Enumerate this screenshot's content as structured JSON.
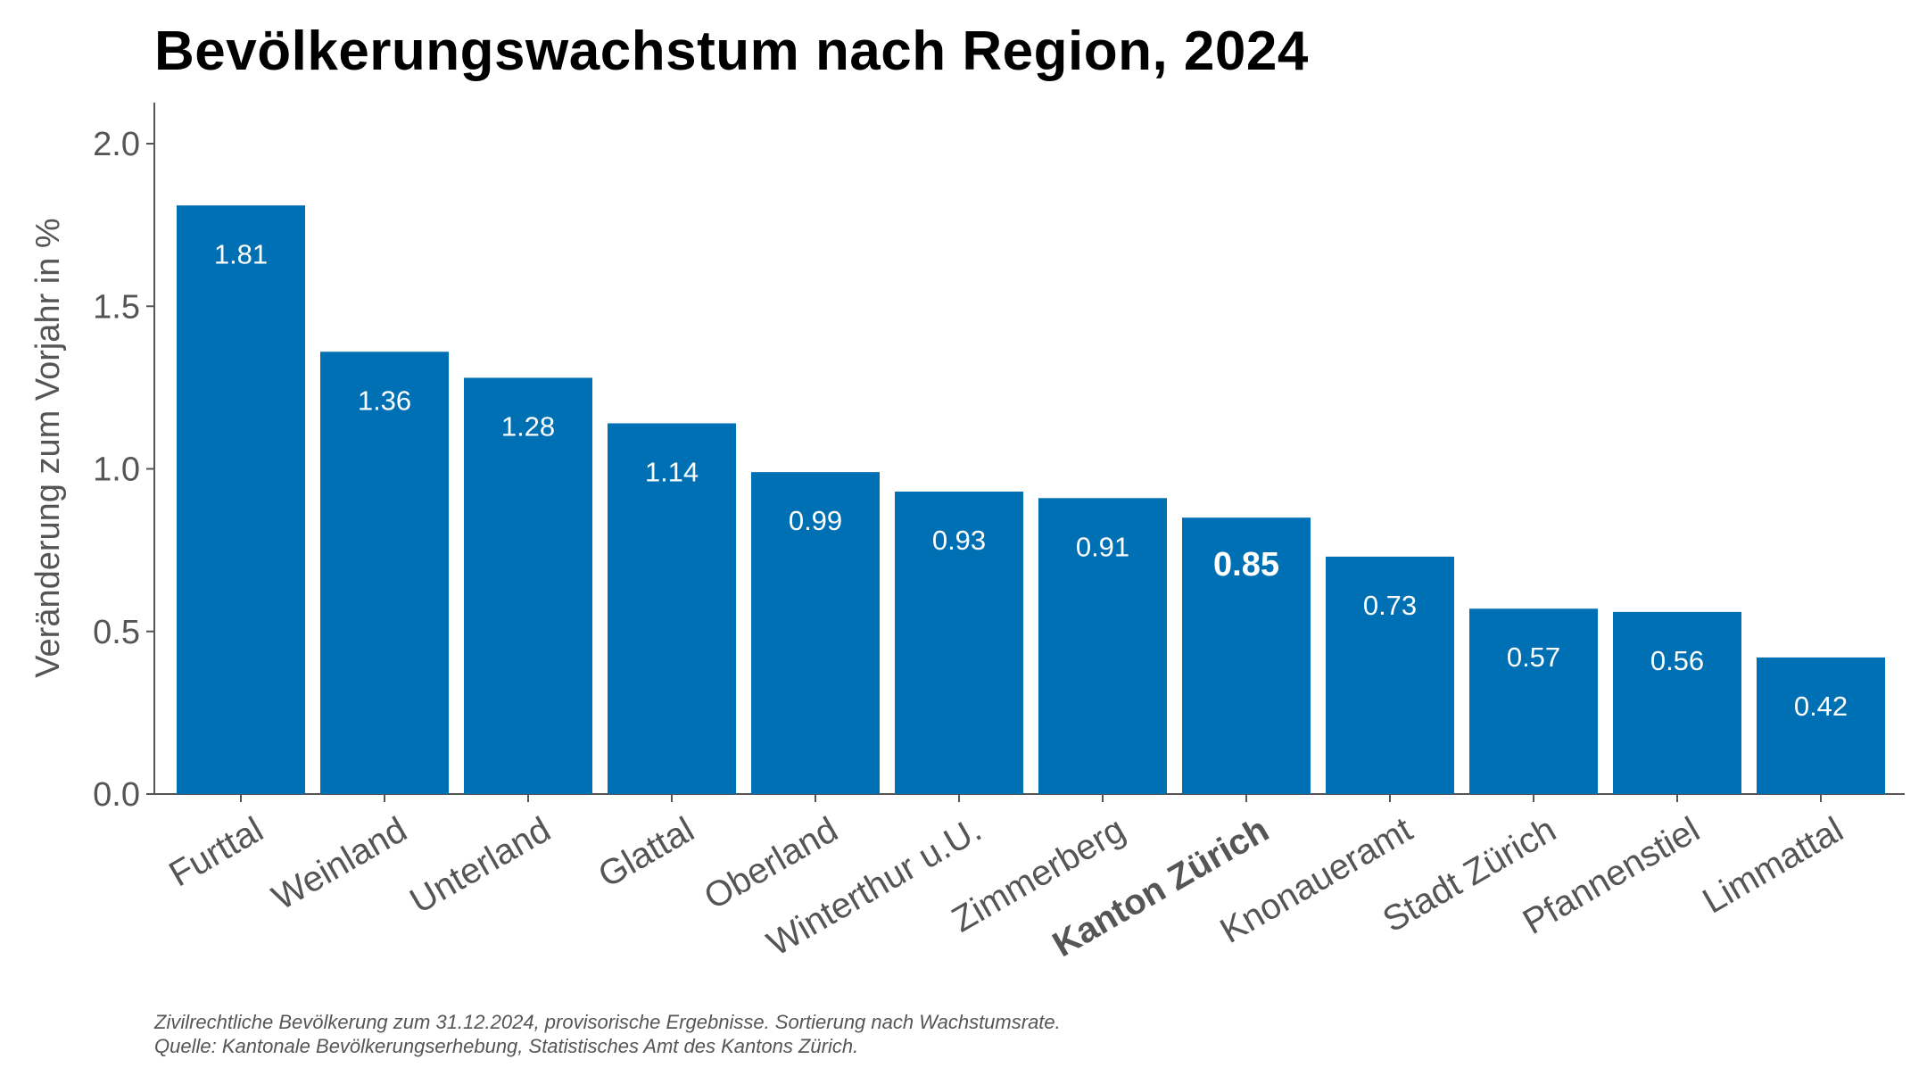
{
  "chart_data": {
    "type": "bar",
    "title": "Bevölkerungswachstum nach Region, 2024",
    "xlabel": "",
    "ylabel": "Veränderung zum Vorjahr in %",
    "ylim": [
      0,
      2.12
    ],
    "yticks": [
      "0.0",
      "0.5",
      "1.0",
      "1.5",
      "2.0"
    ],
    "grid": false,
    "categories": [
      "Furttal",
      "Weinland",
      "Unterland",
      "Glattal",
      "Oberland",
      "Winterthur u.U.",
      "Zimmerberg",
      "Kanton Zürich",
      "Knonaueramt",
      "Stadt Zürich",
      "Pfannenstiel",
      "Limmattal"
    ],
    "values": [
      1.81,
      1.36,
      1.28,
      1.14,
      0.99,
      0.93,
      0.91,
      0.85,
      0.73,
      0.57,
      0.56,
      0.42
    ],
    "labels": [
      "1.81",
      "1.36",
      "1.28",
      "1.14",
      "0.99",
      "0.93",
      "0.91",
      "0.85",
      "0.73",
      "0.57",
      "0.56",
      "0.42"
    ],
    "highlight": "Kanton Zürich",
    "bar_color": "#0070B4",
    "footnotes": [
      "Zivilrechtliche Bevölkerung zum 31.12.2024, provisorische Ergebnisse. Sortierung nach Wachstumsrate.",
      "Quelle: Kantonale Bevölkerungserhebung, Statistisches Amt des Kantons Zürich."
    ]
  }
}
